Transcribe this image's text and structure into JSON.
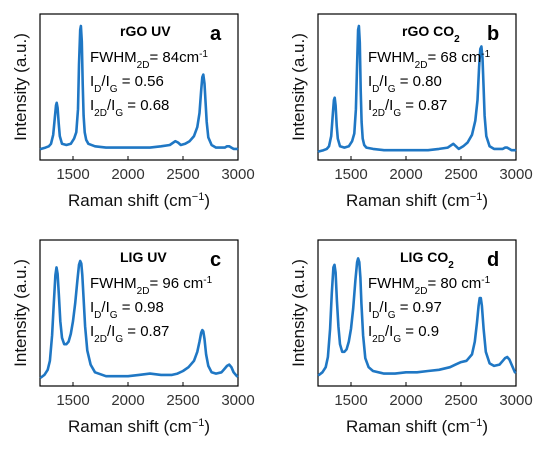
{
  "accent_color": "#1f77c4",
  "axis_color": "#000000",
  "chart_data": [
    {
      "type": "line",
      "panel_letter": "a",
      "title": "rGO UV",
      "title_sub": "",
      "xlabel": "Raman shift (cm",
      "xlabel_sup": "−1",
      "xlabel_end": ")",
      "ylabel": "Intensity (a.u.)",
      "xlim": [
        1200,
        3000
      ],
      "ylim": [
        0,
        1
      ],
      "y_ticks_shown": false,
      "x_ticks": [
        1500,
        2000,
        2500,
        3000
      ],
      "annotations": [
        {
          "pre": "FWHM",
          "sub": "2D",
          "post": "=  84cm",
          "sup": "-1"
        },
        {
          "pre": "I",
          "sub": "D",
          "post": "/I",
          "sub2": "G",
          "post2": " = 0.56"
        },
        {
          "pre": "I",
          "sub": "2D",
          "post": "/I",
          "sub2": "G",
          "post2": " = 0.68"
        }
      ],
      "series": [
        {
          "x": [
            1210,
            1250,
            1280,
            1300,
            1320,
            1335,
            1345,
            1352,
            1360,
            1370,
            1380,
            1400,
            1440,
            1480,
            1510,
            1530,
            1545,
            1555,
            1565,
            1572,
            1580,
            1588,
            1596,
            1606,
            1620,
            1640,
            1700,
            1800,
            1900,
            2000,
            2100,
            2200,
            2300,
            2380,
            2430,
            2455,
            2480,
            2520,
            2560,
            2600,
            2630,
            2650,
            2665,
            2675,
            2685,
            2695,
            2705,
            2715,
            2730,
            2760,
            2800,
            2850,
            2880,
            2900,
            2920,
            2940,
            2960,
            2990
          ],
          "y": [
            0.04,
            0.05,
            0.06,
            0.08,
            0.15,
            0.29,
            0.38,
            0.4,
            0.36,
            0.24,
            0.14,
            0.08,
            0.07,
            0.08,
            0.12,
            0.17,
            0.35,
            0.7,
            0.97,
            1.0,
            0.88,
            0.55,
            0.3,
            0.17,
            0.11,
            0.08,
            0.06,
            0.05,
            0.05,
            0.05,
            0.05,
            0.05,
            0.06,
            0.07,
            0.1,
            0.09,
            0.07,
            0.08,
            0.1,
            0.14,
            0.21,
            0.32,
            0.5,
            0.6,
            0.62,
            0.55,
            0.4,
            0.25,
            0.13,
            0.07,
            0.05,
            0.05,
            0.05,
            0.06,
            0.06,
            0.05,
            0.04,
            0.04
          ]
        }
      ]
    },
    {
      "type": "line",
      "panel_letter": "b",
      "title": "rGO CO",
      "title_sub": "2",
      "xlabel": "Raman shift (cm",
      "xlabel_sup": "−1",
      "xlabel_end": ")",
      "ylabel": "Intensity (a.u.)",
      "xlim": [
        1200,
        3000
      ],
      "ylim": [
        0,
        1
      ],
      "y_ticks_shown": false,
      "x_ticks": [
        1500,
        2000,
        2500,
        3000
      ],
      "annotations": [
        {
          "pre": "FWHM",
          "sub": "2D",
          "post": "= 68 cm",
          "sup": "-1"
        },
        {
          "pre": "I",
          "sub": "D",
          "post": "/I",
          "sub2": "G",
          "post2": " = 0.80"
        },
        {
          "pre": "I",
          "sub": "2D",
          "post": "/I",
          "sub2": "G",
          "post2": " = 0.87"
        }
      ],
      "series": [
        {
          "x": [
            1210,
            1250,
            1280,
            1300,
            1320,
            1335,
            1345,
            1352,
            1360,
            1370,
            1380,
            1400,
            1440,
            1480,
            1510,
            1530,
            1545,
            1555,
            1565,
            1572,
            1580,
            1588,
            1596,
            1606,
            1620,
            1640,
            1700,
            1800,
            1900,
            2000,
            2100,
            2200,
            2300,
            2380,
            2430,
            2455,
            2480,
            2520,
            2560,
            2600,
            2630,
            2650,
            2665,
            2675,
            2685,
            2695,
            2705,
            2715,
            2730,
            2760,
            2800,
            2850,
            2880,
            2900,
            2920,
            2940,
            2960,
            2990
          ],
          "y": [
            0.02,
            0.03,
            0.04,
            0.06,
            0.14,
            0.32,
            0.42,
            0.44,
            0.38,
            0.22,
            0.12,
            0.06,
            0.05,
            0.06,
            0.1,
            0.16,
            0.35,
            0.7,
            0.97,
            1.0,
            0.87,
            0.5,
            0.25,
            0.12,
            0.07,
            0.05,
            0.04,
            0.03,
            0.03,
            0.03,
            0.03,
            0.03,
            0.04,
            0.05,
            0.08,
            0.06,
            0.04,
            0.06,
            0.09,
            0.15,
            0.26,
            0.42,
            0.68,
            0.82,
            0.84,
            0.75,
            0.52,
            0.3,
            0.14,
            0.06,
            0.04,
            0.04,
            0.04,
            0.05,
            0.05,
            0.04,
            0.03,
            0.03
          ]
        }
      ]
    },
    {
      "type": "line",
      "panel_letter": "c",
      "title": "LIG UV",
      "title_sub": "",
      "xlabel": "Raman shift (cm",
      "xlabel_sup": "−1",
      "xlabel_end": ")",
      "ylabel": "Intensity (a.u.)",
      "xlim": [
        1200,
        3000
      ],
      "ylim": [
        0,
        1
      ],
      "y_ticks_shown": false,
      "x_ticks": [
        1500,
        2000,
        2500,
        3000
      ],
      "annotations": [
        {
          "pre": "FWHM",
          "sub": "2D",
          "post": "= 96 cm",
          "sup": "-1"
        },
        {
          "pre": "I",
          "sub": "D",
          "post": "/I",
          "sub2": "G",
          "post2": " = 0.98"
        },
        {
          "pre": "I",
          "sub": "2D",
          "post": "/I",
          "sub2": "G",
          "post2": " = 0.87"
        }
      ],
      "series": [
        {
          "x": [
            1210,
            1240,
            1270,
            1290,
            1310,
            1325,
            1340,
            1350,
            1360,
            1372,
            1385,
            1400,
            1420,
            1440,
            1460,
            1480,
            1500,
            1520,
            1540,
            1555,
            1565,
            1575,
            1585,
            1595,
            1610,
            1630,
            1660,
            1700,
            1800,
            1900,
            2000,
            2100,
            2200,
            2300,
            2400,
            2450,
            2500,
            2550,
            2600,
            2630,
            2650,
            2665,
            2675,
            2685,
            2695,
            2710,
            2730,
            2760,
            2800,
            2850,
            2880,
            2900,
            2920,
            2940,
            2960,
            2990
          ],
          "y": [
            0.02,
            0.04,
            0.08,
            0.15,
            0.35,
            0.6,
            0.82,
            0.88,
            0.83,
            0.66,
            0.46,
            0.33,
            0.28,
            0.28,
            0.3,
            0.36,
            0.46,
            0.6,
            0.78,
            0.9,
            0.93,
            0.91,
            0.82,
            0.65,
            0.42,
            0.23,
            0.12,
            0.06,
            0.03,
            0.03,
            0.03,
            0.04,
            0.05,
            0.04,
            0.04,
            0.05,
            0.07,
            0.1,
            0.15,
            0.22,
            0.3,
            0.37,
            0.39,
            0.38,
            0.32,
            0.2,
            0.11,
            0.06,
            0.05,
            0.06,
            0.09,
            0.11,
            0.12,
            0.1,
            0.06,
            0.03
          ]
        }
      ]
    },
    {
      "type": "line",
      "panel_letter": "d",
      "title": "LIG CO",
      "title_sub": "2",
      "xlabel": "Raman shift (cm",
      "xlabel_sup": "−1",
      "xlabel_end": ")",
      "ylabel": "Intensity (a.u.)",
      "xlim": [
        1200,
        3000
      ],
      "ylim": [
        0,
        1
      ],
      "y_ticks_shown": false,
      "x_ticks": [
        1500,
        2000,
        2500,
        3000
      ],
      "annotations": [
        {
          "pre": "FWHM",
          "sub": "2D",
          "post": "= 80 cm",
          "sup": "-1"
        },
        {
          "pre": "I",
          "sub": "D",
          "post": "/I",
          "sub2": "G",
          "post2": " = 0.97"
        },
        {
          "pre": "I",
          "sub": "2D",
          "post": "/I",
          "sub2": "G",
          "post2": " = 0.9"
        }
      ],
      "series": [
        {
          "x": [
            1210,
            1240,
            1270,
            1290,
            1310,
            1325,
            1340,
            1350,
            1360,
            1372,
            1385,
            1400,
            1420,
            1440,
            1460,
            1480,
            1500,
            1520,
            1540,
            1555,
            1565,
            1575,
            1585,
            1595,
            1610,
            1630,
            1660,
            1700,
            1800,
            1900,
            2000,
            2100,
            2200,
            2300,
            2400,
            2450,
            2500,
            2550,
            2600,
            2625,
            2645,
            2660,
            2670,
            2680,
            2690,
            2705,
            2725,
            2760,
            2800,
            2850,
            2880,
            2900,
            2920,
            2940,
            2960,
            2990
          ],
          "y": [
            0.04,
            0.06,
            0.1,
            0.18,
            0.4,
            0.68,
            0.88,
            0.9,
            0.84,
            0.62,
            0.42,
            0.28,
            0.22,
            0.22,
            0.24,
            0.3,
            0.4,
            0.56,
            0.78,
            0.92,
            0.95,
            0.92,
            0.8,
            0.6,
            0.35,
            0.17,
            0.1,
            0.07,
            0.05,
            0.05,
            0.06,
            0.06,
            0.07,
            0.08,
            0.1,
            0.12,
            0.14,
            0.15,
            0.2,
            0.3,
            0.45,
            0.58,
            0.64,
            0.64,
            0.58,
            0.4,
            0.22,
            0.13,
            0.11,
            0.12,
            0.15,
            0.17,
            0.18,
            0.16,
            0.12,
            0.06
          ]
        }
      ]
    }
  ]
}
